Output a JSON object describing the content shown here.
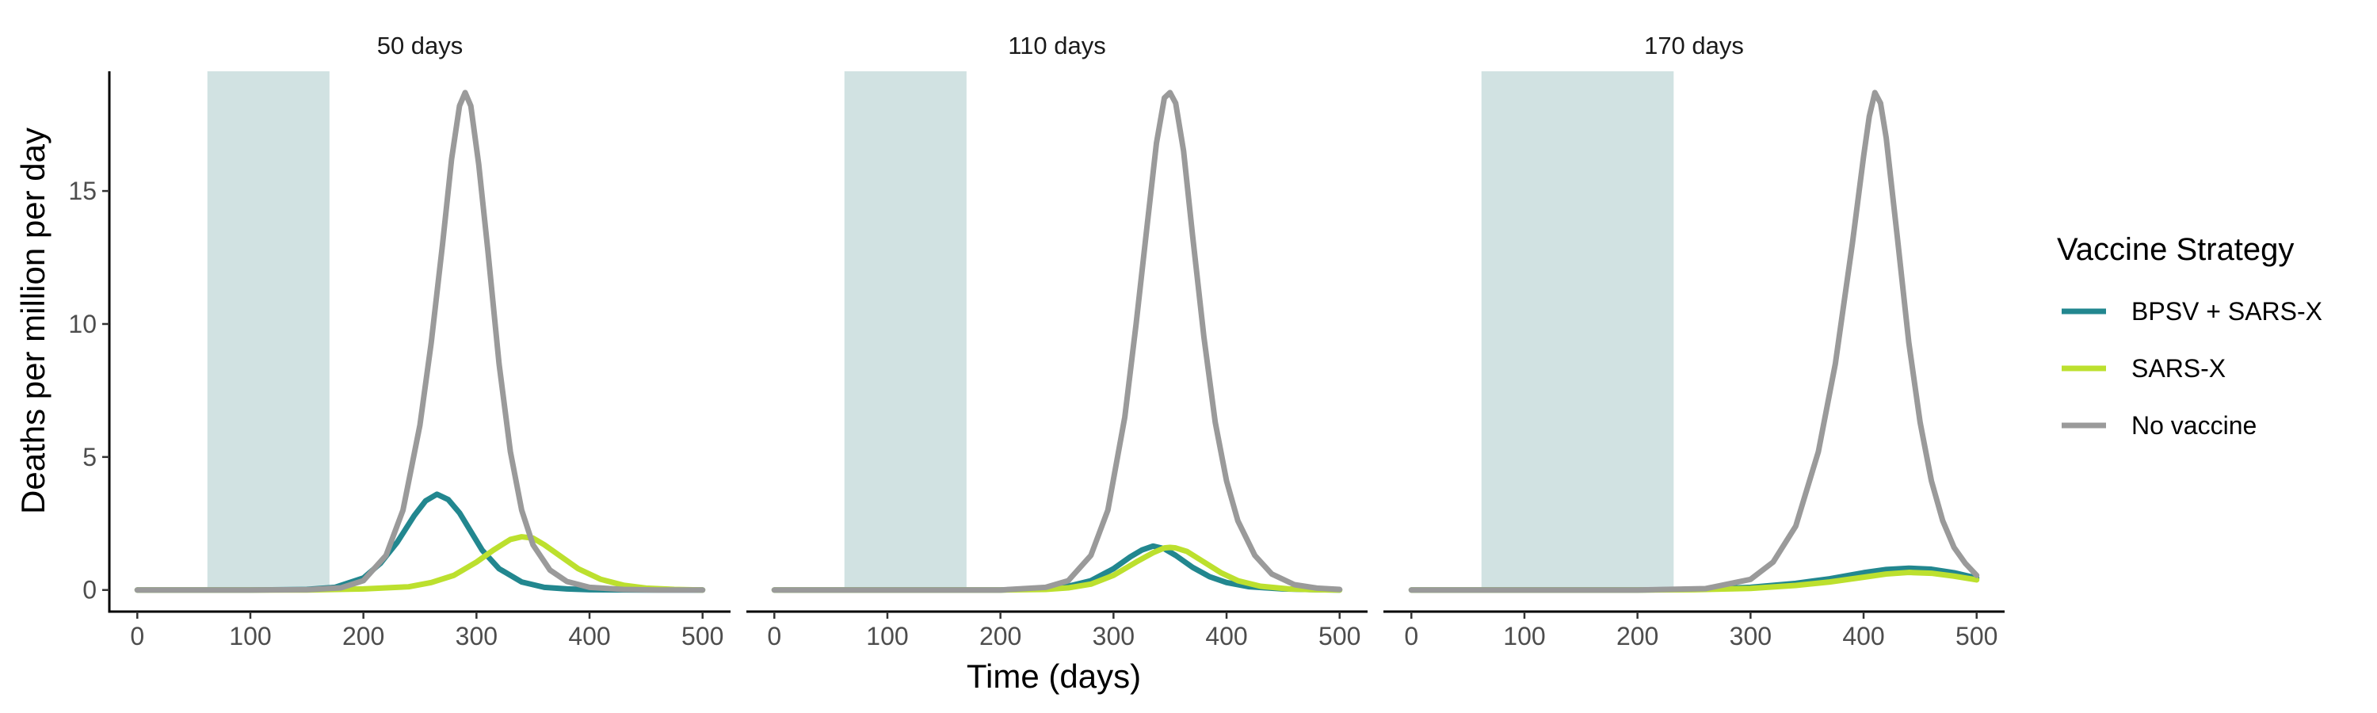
{
  "chart_data": {
    "type": "line",
    "xlabel": "Time (days)",
    "ylabel": "Deaths per million per day",
    "xlim": [
      0,
      500
    ],
    "ylim": [
      0,
      19.5
    ],
    "x_ticks": [
      0,
      100,
      200,
      300,
      400,
      500
    ],
    "y_ticks": [
      0,
      5,
      10,
      15
    ],
    "grid": false,
    "legend": {
      "title": "Vaccine Strategy",
      "placement": "right",
      "entries": [
        {
          "name": "BPSV + SARS-X",
          "color": "#22878F"
        },
        {
          "name": "SARS-X",
          "color": "#BCE02E"
        },
        {
          "name": "No vaccine",
          "color": "#9A9A9A"
        }
      ]
    },
    "panels": [
      {
        "title": "50 days",
        "shaded_interval": [
          62,
          170
        ],
        "series": [
          {
            "name": "BPSV + SARS-X",
            "color": "#22878F",
            "x": [
              0,
              50,
              100,
              150,
              175,
              200,
              215,
              230,
              245,
              255,
              265,
              275,
              285,
              295,
              305,
              320,
              340,
              360,
              380,
              400,
              450,
              500
            ],
            "y": [
              0,
              0,
              0,
              0.02,
              0.1,
              0.45,
              1.0,
              1.8,
              2.8,
              3.35,
              3.6,
              3.4,
              2.9,
              2.2,
              1.5,
              0.8,
              0.3,
              0.1,
              0.04,
              0.01,
              0,
              0
            ]
          },
          {
            "name": "SARS-X",
            "color": "#BCE02E",
            "x": [
              0,
              50,
              100,
              150,
              200,
              240,
              260,
              280,
              300,
              315,
              330,
              340,
              350,
              360,
              375,
              390,
              410,
              430,
              450,
              475,
              500
            ],
            "y": [
              0,
              0,
              0,
              0,
              0.04,
              0.12,
              0.28,
              0.55,
              1.05,
              1.5,
              1.9,
              2.0,
              1.95,
              1.7,
              1.25,
              0.8,
              0.4,
              0.18,
              0.07,
              0.02,
              0
            ]
          },
          {
            "name": "No vaccine",
            "color": "#9A9A9A",
            "x": [
              0,
              50,
              100,
              150,
              180,
              200,
              220,
              235,
              250,
              260,
              270,
              278,
              285,
              290,
              295,
              302,
              310,
              320,
              330,
              340,
              350,
              365,
              380,
              400,
              430,
              460,
              500
            ],
            "y": [
              0,
              0,
              0,
              0.01,
              0.08,
              0.35,
              1.3,
              3.0,
              6.2,
              9.3,
              13.0,
              16.2,
              18.2,
              18.7,
              18.2,
              16.0,
              12.8,
              8.5,
              5.2,
              3.0,
              1.7,
              0.75,
              0.32,
              0.1,
              0.02,
              0,
              0
            ]
          }
        ]
      },
      {
        "title": "110 days",
        "shaded_interval": [
          62,
          170
        ],
        "series": [
          {
            "name": "BPSV + SARS-X",
            "color": "#22878F",
            "x": [
              0,
              100,
              200,
              240,
              260,
              280,
              300,
              315,
              325,
              335,
              345,
              355,
              370,
              385,
              400,
              420,
              450,
              480,
              500
            ],
            "y": [
              0,
              0,
              0,
              0.05,
              0.14,
              0.35,
              0.8,
              1.25,
              1.5,
              1.65,
              1.55,
              1.3,
              0.85,
              0.5,
              0.28,
              0.12,
              0.04,
              0.01,
              0
            ]
          },
          {
            "name": "SARS-X",
            "color": "#BCE02E",
            "x": [
              0,
              100,
              200,
              240,
              260,
              280,
              300,
              320,
              335,
              345,
              350,
              355,
              365,
              380,
              395,
              410,
              430,
              455,
              480,
              500
            ],
            "y": [
              0,
              0,
              0,
              0.02,
              0.08,
              0.22,
              0.55,
              1.05,
              1.4,
              1.58,
              1.6,
              1.58,
              1.45,
              1.05,
              0.65,
              0.35,
              0.14,
              0.04,
              0.01,
              0
            ]
          },
          {
            "name": "No vaccine",
            "color": "#9A9A9A",
            "x": [
              0,
              100,
              200,
              240,
              260,
              280,
              295,
              310,
              320,
              330,
              338,
              345,
              350,
              355,
              362,
              370,
              380,
              390,
              400,
              410,
              425,
              440,
              460,
              480,
              500
            ],
            "y": [
              0,
              0,
              0,
              0.1,
              0.35,
              1.3,
              3.0,
              6.5,
              10.0,
              13.8,
              16.8,
              18.5,
              18.7,
              18.3,
              16.5,
              13.3,
              9.5,
              6.3,
              4.1,
              2.6,
              1.3,
              0.6,
              0.2,
              0.07,
              0.02
            ]
          }
        ]
      },
      {
        "title": "170 days",
        "shaded_interval": [
          62,
          232
        ],
        "series": [
          {
            "name": "BPSV + SARS-X",
            "color": "#22878F",
            "x": [
              0,
              100,
              200,
              250,
              300,
              340,
              370,
              400,
              420,
              440,
              460,
              480,
              500
            ],
            "y": [
              0,
              0,
              0,
              0.02,
              0.1,
              0.25,
              0.42,
              0.65,
              0.77,
              0.82,
              0.78,
              0.65,
              0.45
            ]
          },
          {
            "name": "SARS-X",
            "color": "#BCE02E",
            "x": [
              0,
              100,
              200,
              250,
              300,
              340,
              370,
              400,
              420,
              440,
              460,
              480,
              500
            ],
            "y": [
              0,
              0,
              0,
              0.01,
              0.06,
              0.17,
              0.3,
              0.48,
              0.6,
              0.66,
              0.63,
              0.52,
              0.38
            ]
          },
          {
            "name": "No vaccine",
            "color": "#9A9A9A",
            "x": [
              0,
              100,
              200,
              260,
              300,
              320,
              340,
              360,
              375,
              390,
              400,
              405,
              410,
              415,
              420,
              430,
              440,
              450,
              460,
              470,
              480,
              490,
              500
            ],
            "y": [
              0,
              0,
              0,
              0.05,
              0.4,
              1.05,
              2.4,
              5.2,
              8.5,
              13.0,
              16.3,
              17.8,
              18.7,
              18.3,
              17.0,
              13.2,
              9.3,
              6.3,
              4.1,
              2.6,
              1.6,
              1.0,
              0.55
            ]
          }
        ]
      }
    ]
  }
}
